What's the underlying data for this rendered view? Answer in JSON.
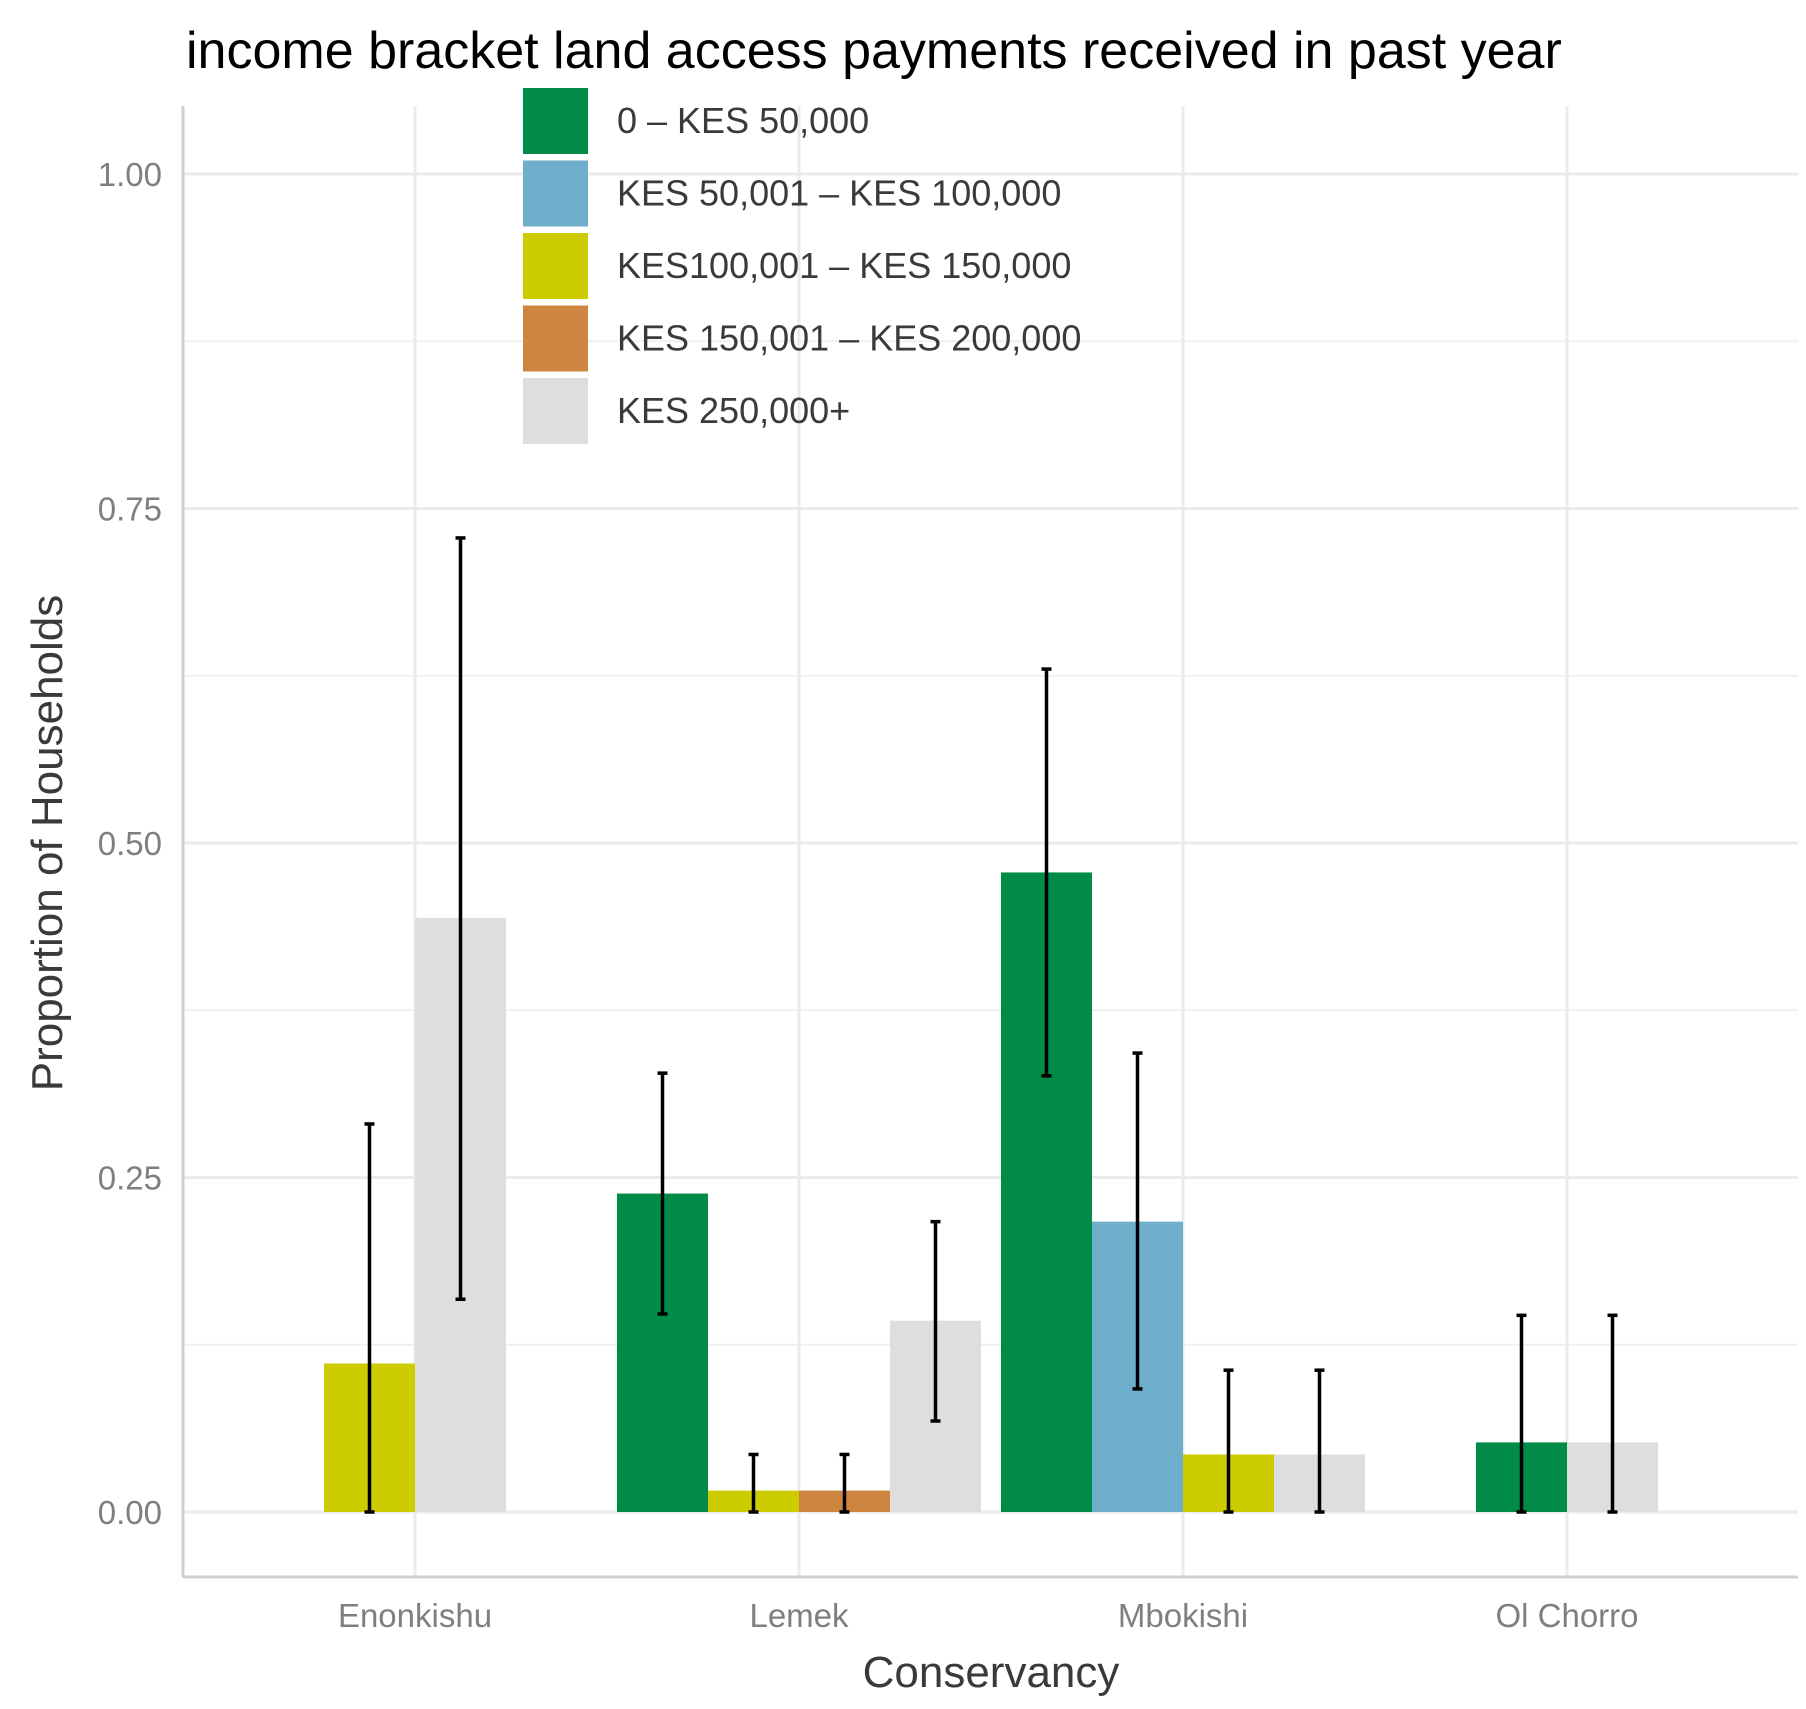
{
  "chart_data": {
    "type": "bar",
    "title": "income bracket land access payments received in past year",
    "xlabel": "Conservancy",
    "ylabel": "Proportion of Households",
    "categories": [
      "Enonkishu",
      "Lemek",
      "Mbokishi",
      "Ol Chorro"
    ],
    "yticks": [
      "0.00",
      "0.25",
      "0.50",
      "0.75",
      "1.00"
    ],
    "ylim": [
      -0.05,
      1.05
    ],
    "grid": true,
    "legend_position": "top-left",
    "series": [
      {
        "name": "0 – KES 50,000",
        "color": "#008b47",
        "values": [
          null,
          0.238,
          0.478,
          0.052
        ],
        "error_low": [
          null,
          0.148,
          0.326,
          0.0
        ],
        "error_high": [
          null,
          0.328,
          0.63,
          0.147
        ]
      },
      {
        "name": "KES 50,001 – KES 100,000",
        "color": "#6eaecb",
        "values": [
          null,
          null,
          0.217,
          null
        ],
        "error_low": [
          null,
          null,
          0.092,
          null
        ],
        "error_high": [
          null,
          null,
          0.343,
          null
        ]
      },
      {
        "name": "KES100,001 – KES 150,000",
        "color": "#cccc00",
        "values": [
          0.111,
          0.016,
          0.043,
          null
        ],
        "error_low": [
          0.0,
          0.0,
          0.0,
          null
        ],
        "error_high": [
          0.29,
          0.043,
          0.106,
          null
        ]
      },
      {
        "name": "KES 150,001 – KES 200,000",
        "color": "#cd853f",
        "values": [
          null,
          0.016,
          null,
          null
        ],
        "error_low": [
          null,
          0.0,
          null,
          null
        ],
        "error_high": [
          null,
          0.043,
          null,
          null
        ]
      },
      {
        "name": "KES 250,000+",
        "color": "#dedede",
        "values": [
          0.444,
          0.143,
          0.043,
          0.052
        ],
        "error_low": [
          0.159,
          0.068,
          0.0,
          0.0
        ],
        "error_high": [
          0.728,
          0.217,
          0.106,
          0.147
        ]
      }
    ]
  }
}
